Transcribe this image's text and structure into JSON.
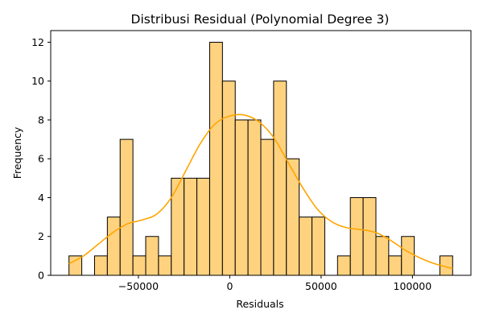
{
  "chart_data": {
    "type": "bar",
    "title": "Distribusi Residual (Polynomial Degree 3)",
    "xlabel": "Residuals",
    "ylabel": "Frequency",
    "bin_width": 7000,
    "bins": [
      {
        "start": -88000,
        "count": 1
      },
      {
        "start": -81000,
        "count": 0
      },
      {
        "start": -74000,
        "count": 1
      },
      {
        "start": -67000,
        "count": 3
      },
      {
        "start": -60000,
        "count": 7
      },
      {
        "start": -53000,
        "count": 1
      },
      {
        "start": -46000,
        "count": 2
      },
      {
        "start": -39000,
        "count": 1
      },
      {
        "start": -32000,
        "count": 5
      },
      {
        "start": -25000,
        "count": 5
      },
      {
        "start": -18000,
        "count": 5
      },
      {
        "start": -11000,
        "count": 12
      },
      {
        "start": -4000,
        "count": 10
      },
      {
        "start": 3000,
        "count": 8
      },
      {
        "start": 10000,
        "count": 8
      },
      {
        "start": 17000,
        "count": 7
      },
      {
        "start": 24000,
        "count": 10
      },
      {
        "start": 31000,
        "count": 6
      },
      {
        "start": 38000,
        "count": 3
      },
      {
        "start": 45000,
        "count": 3
      },
      {
        "start": 52000,
        "count": 0
      },
      {
        "start": 59000,
        "count": 1
      },
      {
        "start": 66000,
        "count": 4
      },
      {
        "start": 73000,
        "count": 4
      },
      {
        "start": 80000,
        "count": 2
      },
      {
        "start": 87000,
        "count": 1
      },
      {
        "start": 94000,
        "count": 2
      },
      {
        "start": 101000,
        "count": 0
      },
      {
        "start": 108000,
        "count": 0
      },
      {
        "start": 115000,
        "count": 1
      }
    ],
    "kde": {
      "x": [
        -88000,
        -80000,
        -72000,
        -64000,
        -56000,
        -48000,
        -40000,
        -32000,
        -24000,
        -16000,
        -8000,
        0,
        8000,
        16000,
        24000,
        32000,
        40000,
        48000,
        56000,
        64000,
        72000,
        80000,
        88000,
        96000,
        104000,
        112000,
        122000
      ],
      "y": [
        0.6,
        1.0,
        1.6,
        2.2,
        2.65,
        2.85,
        3.15,
        4.0,
        5.4,
        6.8,
        7.8,
        8.2,
        8.25,
        7.9,
        7.1,
        5.8,
        4.5,
        3.4,
        2.75,
        2.45,
        2.35,
        2.2,
        1.8,
        1.3,
        0.9,
        0.6,
        0.35
      ]
    },
    "xlim": [
      -98000,
      132000
    ],
    "ylim": [
      0,
      12.6
    ],
    "xticks": [
      -50000,
      0,
      50000,
      100000
    ],
    "xtick_labels": [
      "−50000",
      "0",
      "50000",
      "100000"
    ],
    "yticks": [
      0,
      2,
      4,
      6,
      8,
      10,
      12
    ],
    "ytick_labels": [
      "0",
      "2",
      "4",
      "6",
      "8",
      "10",
      "12"
    ],
    "bar_color": "#ffd27f",
    "edge_color": "#000000",
    "kde_color": "#ffa500",
    "grid": false
  }
}
